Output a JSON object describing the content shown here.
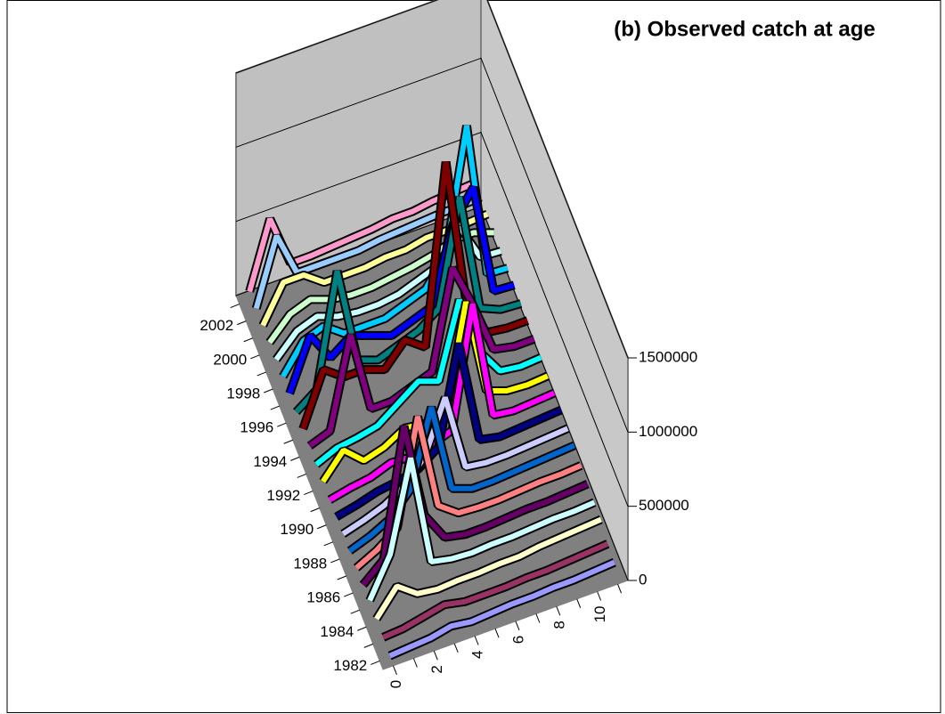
{
  "chart_data": {
    "type": "ribbon3d",
    "title": "(b) Observed catch at age",
    "categories": [
      0,
      null,
      2,
      null,
      4,
      null,
      6,
      null,
      8,
      null,
      10,
      null
    ],
    "zlim": [
      0,
      1500000
    ],
    "zticks": [
      0,
      500000,
      1000000,
      1500000
    ],
    "grid": true,
    "series": [
      {
        "name": "1982",
        "color": "#9999ff",
        "values": [
          10000,
          20000,
          30000,
          60000,
          40000,
          50000,
          60000,
          60000,
          70000,
          70000,
          80000,
          90000
        ]
      },
      {
        "name": null,
        "color": "#993366",
        "values": [
          20000,
          30000,
          60000,
          90000,
          60000,
          60000,
          60000,
          70000,
          70000,
          80000,
          90000,
          100000
        ]
      },
      {
        "name": "1984",
        "color": "#ffffcc",
        "values": [
          30000,
          200000,
          100000,
          80000,
          90000,
          90000,
          100000,
          100000,
          120000,
          130000,
          140000,
          150000
        ]
      },
      {
        "name": null,
        "color": "#ccffff",
        "values": [
          40000,
          300000,
          900000,
          150000,
          120000,
          110000,
          120000,
          120000,
          130000,
          140000,
          140000,
          150000
        ]
      },
      {
        "name": "1986",
        "color": "#660066",
        "values": [
          30000,
          150000,
          1000000,
          350000,
          150000,
          120000,
          120000,
          130000,
          140000,
          140000,
          150000,
          160000
        ]
      },
      {
        "name": null,
        "color": "#ff8080",
        "values": [
          30000,
          100000,
          200000,
          900000,
          250000,
          150000,
          140000,
          140000,
          150000,
          160000,
          160000,
          170000
        ]
      },
      {
        "name": "1988",
        "color": "#0066cc",
        "values": [
          30000,
          80000,
          150000,
          300000,
          800000,
          200000,
          150000,
          150000,
          160000,
          170000,
          180000,
          190000
        ]
      },
      {
        "name": null,
        "color": "#ccccff",
        "values": [
          30000,
          70000,
          120000,
          200000,
          350000,
          700000,
          180000,
          160000,
          160000,
          170000,
          180000,
          190000
        ]
      },
      {
        "name": "1990",
        "color": "#000080",
        "values": [
          30000,
          60000,
          100000,
          120000,
          150000,
          250000,
          900000,
          200000,
          170000,
          180000,
          190000,
          200000
        ]
      },
      {
        "name": null,
        "color": "#ff00ff",
        "values": [
          30000,
          60000,
          80000,
          130000,
          120000,
          150000,
          200000,
          1000000,
          200000,
          180000,
          190000,
          200000
        ]
      },
      {
        "name": "1992",
        "color": "#ffff00",
        "values": [
          40000,
          200000,
          80000,
          120000,
          200000,
          180000,
          200000,
          900000,
          250000,
          200000,
          190000,
          200000
        ]
      },
      {
        "name": null,
        "color": "#00ffff",
        "values": [
          40000,
          100000,
          120000,
          150000,
          250000,
          350000,
          300000,
          800000,
          400000,
          220000,
          200000,
          210000
        ]
      },
      {
        "name": "1994",
        "color": "#800080",
        "values": [
          50000,
          100000,
          700000,
          150000,
          150000,
          200000,
          250000,
          900000,
          600000,
          250000,
          220000,
          220000
        ]
      },
      {
        "name": null,
        "color": "#800000",
        "values": [
          50000,
          400000,
          300000,
          300000,
          250000,
          400000,
          300000,
          1500000,
          500000,
          250000,
          230000,
          230000
        ]
      },
      {
        "name": "1996",
        "color": "#008080",
        "values": [
          50000,
          150000,
          900000,
          250000,
          200000,
          250000,
          300000,
          400000,
          1100000,
          300000,
          240000,
          230000
        ]
      },
      {
        "name": null,
        "color": "#0000ff",
        "values": [
          60000,
          400000,
          200000,
          300000,
          250000,
          200000,
          250000,
          300000,
          800000,
          1000000,
          250000,
          240000
        ]
      },
      {
        "name": "1998",
        "color": "#00ccff",
        "values": [
          60000,
          250000,
          300000,
          200000,
          200000,
          200000,
          250000,
          300000,
          500000,
          1300000,
          250000,
          240000
        ]
      },
      {
        "name": null,
        "color": "#ccffff",
        "values": [
          60000,
          200000,
          250000,
          200000,
          180000,
          180000,
          200000,
          250000,
          300000,
          500000,
          250000,
          240000
        ]
      },
      {
        "name": "2000",
        "color": "#ccffcc",
        "values": [
          60000,
          200000,
          250000,
          200000,
          180000,
          180000,
          200000,
          220000,
          250000,
          300000,
          300000,
          250000
        ]
      },
      {
        "name": null,
        "color": "#ffff99",
        "values": [
          60000,
          300000,
          300000,
          200000,
          200000,
          200000,
          220000,
          220000,
          250000,
          250000,
          250000,
          260000
        ]
      },
      {
        "name": "2002",
        "color": "#99ccff",
        "values": [
          60000,
          500000,
          200000,
          200000,
          200000,
          200000,
          220000,
          230000,
          240000,
          250000,
          250000,
          260000
        ]
      },
      {
        "name": null,
        "color": "#ff99cc",
        "values": [
          60000,
          500000,
          150000,
          150000,
          160000,
          170000,
          180000,
          200000,
          200000,
          220000,
          230000,
          240000
        ]
      }
    ]
  }
}
